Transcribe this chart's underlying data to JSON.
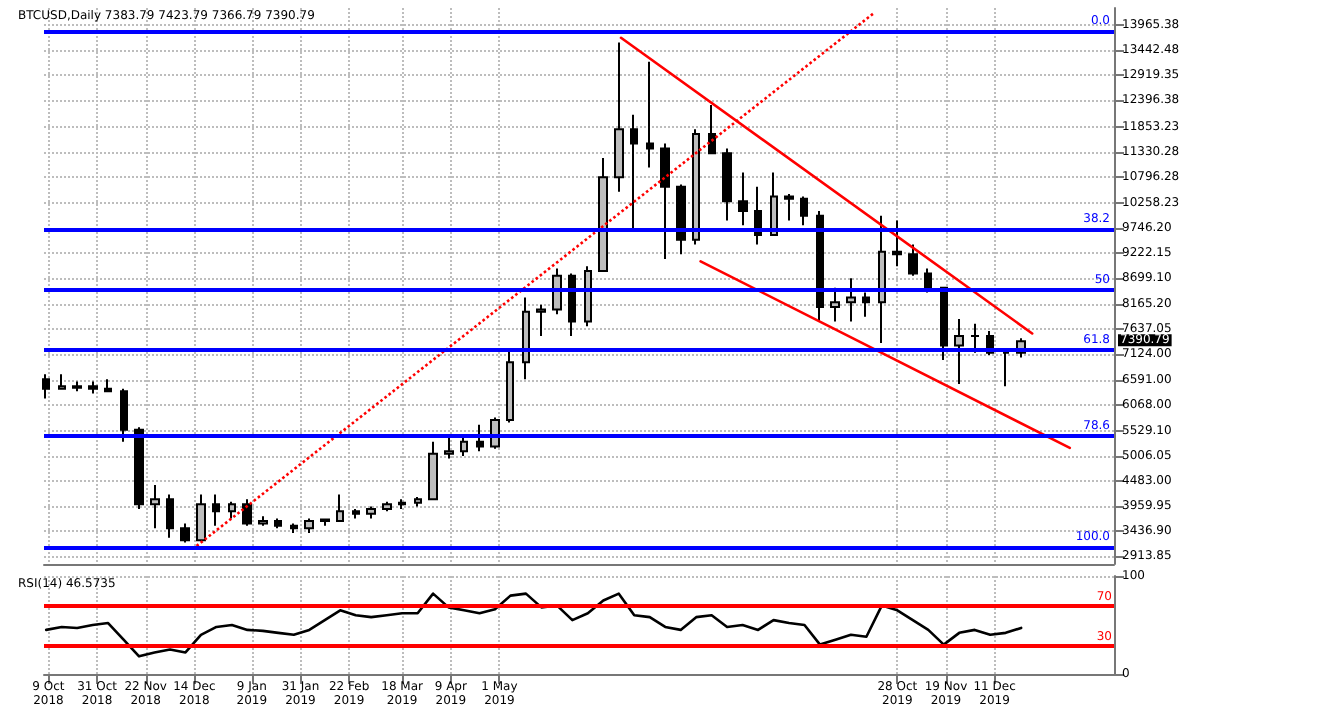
{
  "chart_data": [
    {
      "type": "candlestick",
      "title": "BTCUSD,Daily 7383.79 7423.79 7366.79 7390.79",
      "xlim": [
        "2018-10-07",
        "2020-02-03"
      ],
      "ylim": [
        2755,
        14320
      ],
      "xticks": [
        "2018-10-09",
        "2018-10-31",
        "2018-11-22",
        "2018-12-14",
        "2019-01-09",
        "2019-01-31",
        "2019-02-22",
        "2019-03-18",
        "2019-04-09",
        "2019-05-01",
        "2019-10-28",
        "2019-11-19",
        "2019-12-11"
      ],
      "yticks": [
        {
          "value": 13965.38,
          "label": "13965.38"
        },
        {
          "value": 13442.48,
          "label": "13442.48"
        },
        {
          "value": 12919.35,
          "label": "12919.35"
        },
        {
          "value": 12396.38,
          "label": "12396.38"
        },
        {
          "value": 11853.23,
          "label": "11853.23"
        },
        {
          "value": 11330.28,
          "label": "11330.28"
        },
        {
          "value": 10796.28,
          "label": "10796.28"
        },
        {
          "value": 10258.23,
          "label": "10258.23"
        },
        {
          "value": 9746.2,
          "label": "9746.20"
        },
        {
          "value": 9222.15,
          "label": "9222.15"
        },
        {
          "value": 8699.1,
          "label": "8699.10"
        },
        {
          "value": 8165.2,
          "label": "8165.20"
        },
        {
          "value": 7637.05,
          "label": "7637.05"
        },
        {
          "value": 7124,
          "label": "7124.00"
        },
        {
          "value": 6591,
          "label": "6591.00"
        },
        {
          "value": 6068,
          "label": "6068.00"
        },
        {
          "value": 5529.1,
          "label": "5529.10"
        },
        {
          "value": 5006.05,
          "label": "5006.05"
        },
        {
          "value": 4483,
          "label": "4483.00"
        },
        {
          "value": 3959.95,
          "label": "3959.95"
        },
        {
          "value": 3436.9,
          "label": "3436.90"
        },
        {
          "value": 2913.85,
          "label": "2913.85"
        }
      ],
      "tick_labels": "y",
      "grid": true,
      "series": [
        {
          "color": "#000000",
          "x": [
            "2018-10-08",
            "2018-10-15",
            "2018-10-22",
            "2018-10-29",
            "2018-11-05",
            "2018-11-12",
            "2018-11-19",
            "2018-11-26",
            "2018-12-03",
            "2018-12-10",
            "2018-12-17",
            "2018-12-24",
            "2018-12-31",
            "2019-01-07",
            "2019-01-14",
            "2019-01-21",
            "2019-01-28",
            "2019-02-04",
            "2019-02-11",
            "2019-02-18",
            "2019-02-25",
            "2019-03-04",
            "2019-03-11",
            "2019-03-18",
            "2019-03-25",
            "2019-04-01",
            "2019-04-08",
            "2019-04-15",
            "2019-04-22",
            "2019-04-29",
            "2019-05-06",
            "2019-05-13",
            "2019-05-20",
            "2019-05-27",
            "2019-06-03",
            "2019-06-10",
            "2019-06-17",
            "2019-06-24",
            "2019-07-01",
            "2019-07-08",
            "2019-07-15",
            "2019-07-22",
            "2019-07-29",
            "2019-08-05",
            "2019-08-12",
            "2019-08-19",
            "2019-08-26",
            "2019-09-02",
            "2019-09-09",
            "2019-09-16",
            "2019-09-23",
            "2019-09-30",
            "2019-10-07",
            "2019-10-14",
            "2019-10-21",
            "2019-10-28",
            "2019-11-04",
            "2019-11-11",
            "2019-11-18",
            "2019-11-25",
            "2019-12-02",
            "2019-12-09",
            "2019-12-16",
            "2019-12-23"
          ],
          "ohlc": [
            [
              6600,
              6700,
              6200,
              6400
            ],
            [
              6400,
              6700,
              6400,
              6450
            ],
            [
              6450,
              6550,
              6350,
              6420
            ],
            [
              6450,
              6550,
              6300,
              6400
            ],
            [
              6400,
              6600,
              6350,
              6350
            ],
            [
              6350,
              6400,
              5300,
              5550
            ],
            [
              5550,
              5600,
              3900,
              4000
            ],
            [
              4000,
              4400,
              3500,
              4100
            ],
            [
              4100,
              4200,
              3300,
              3500
            ],
            [
              3500,
              3600,
              3200,
              3250
            ],
            [
              3250,
              4200,
              3250,
              4000
            ],
            [
              4000,
              4200,
              3550,
              3850
            ],
            [
              3850,
              4050,
              3700,
              4000
            ],
            [
              4000,
              4100,
              3550,
              3600
            ],
            [
              3600,
              3750,
              3550,
              3650
            ],
            [
              3650,
              3700,
              3500,
              3550
            ],
            [
              3550,
              3600,
              3400,
              3500
            ],
            [
              3500,
              3700,
              3400,
              3650
            ],
            [
              3650,
              3700,
              3550,
              3680
            ],
            [
              3650,
              4200,
              3650,
              3850
            ],
            [
              3850,
              3900,
              3700,
              3800
            ],
            [
              3800,
              3950,
              3700,
              3900
            ],
            [
              3900,
              4050,
              3850,
              4000
            ],
            [
              4000,
              4100,
              3900,
              4030
            ],
            [
              4030,
              4150,
              3950,
              4100
            ],
            [
              4100,
              5300,
              4100,
              5050
            ],
            [
              5050,
              5450,
              4950,
              5100
            ],
            [
              5100,
              5400,
              5000,
              5300
            ],
            [
              5300,
              5650,
              5100,
              5200
            ],
            [
              5200,
              5800,
              5150,
              5750
            ],
            [
              5750,
              7200,
              5700,
              6950
            ],
            [
              6950,
              8300,
              6600,
              8000
            ],
            [
              8000,
              8150,
              7500,
              8050
            ],
            [
              8050,
              8900,
              7950,
              8750
            ],
            [
              8750,
              8800,
              7500,
              7800
            ],
            [
              7800,
              8950,
              7700,
              8850
            ],
            [
              8850,
              11200,
              8850,
              10800
            ],
            [
              10800,
              13600,
              10500,
              11800
            ],
            [
              11800,
              12100,
              9700,
              11500
            ],
            [
              11500,
              13200,
              11000,
              11400
            ],
            [
              11400,
              11500,
              9100,
              10600
            ],
            [
              10600,
              10650,
              9200,
              9500
            ],
            [
              9500,
              11800,
              9400,
              11700
            ],
            [
              11700,
              12300,
              11300,
              11300
            ],
            [
              11300,
              11400,
              9900,
              10300
            ],
            [
              10300,
              10900,
              9800,
              10100
            ],
            [
              10100,
              10600,
              9400,
              9600
            ],
            [
              9600,
              10900,
              9600,
              10400
            ],
            [
              10400,
              10450,
              9900,
              10350
            ],
            [
              10350,
              10400,
              9800,
              10000
            ],
            [
              10000,
              10100,
              7800,
              8100
            ],
            [
              8100,
              8500,
              7800,
              8200
            ],
            [
              8200,
              8700,
              7800,
              8300
            ],
            [
              8300,
              8400,
              7900,
              8200
            ],
            [
              8200,
              10000,
              7350,
              9250
            ],
            [
              9250,
              9900,
              8950,
              9200
            ],
            [
              9200,
              9400,
              8750,
              8800
            ],
            [
              8800,
              8900,
              8400,
              8500
            ],
            [
              8500,
              8500,
              7000,
              7300
            ],
            [
              7300,
              7850,
              6500,
              7500
            ],
            [
              7500,
              7750,
              7150,
              7500
            ],
            [
              7500,
              7600,
              7100,
              7150
            ],
            [
              7150,
              7200,
              6450,
              7150
            ],
            [
              7150,
              7450,
              7050,
              7390.79
            ]
          ]
        },
        {
          "type": "line",
          "color": "#ff0000",
          "x": [
            "2019-06-25",
            "2019-12-28"
          ],
          "values": [
            13700,
            7550
          ]
        },
        {
          "type": "line",
          "color": "#ff0000",
          "x": [
            "2019-07-31",
            "2020-01-14"
          ],
          "values": [
            9050,
            5170
          ]
        },
        {
          "type": "line",
          "color": "#ff0000",
          "line_style": "dotted",
          "x": [
            "2018-12-15",
            "2019-10-17"
          ],
          "values": [
            3130,
            14200
          ]
        }
      ],
      "ref_lines": [
        {
          "axis": "y",
          "value": 13850,
          "color": "#0000ff"
        },
        {
          "axis": "y",
          "value": 9730,
          "color": "#0000ff"
        },
        {
          "axis": "y",
          "value": 8460,
          "color": "#0000ff"
        },
        {
          "axis": "y",
          "value": 7200,
          "color": "#0000ff"
        },
        {
          "axis": "y",
          "value": 5410,
          "color": "#0000ff"
        },
        {
          "axis": "y",
          "value": 3100,
          "color": "#0000ff"
        }
      ],
      "annotations": [
        {
          "text": "0.0",
          "y": 13850
        },
        {
          "text": "38.2",
          "y": 9730
        },
        {
          "text": "50",
          "y": 8460
        },
        {
          "text": "61.8",
          "y": 7200
        },
        {
          "text": "78.6",
          "y": 5410
        },
        {
          "text": "100.0",
          "y": 3100
        },
        "7390.79"
      ]
    },
    {
      "type": "line",
      "title": "RSI(14) 46.5735",
      "xlim": [
        "2018-10-07",
        "2020-02-03"
      ],
      "ylim": [
        0,
        100
      ],
      "yticks": [
        0,
        100
      ],
      "xticks": [
        {
          "value": "2018-10-09",
          "label": "9 Oct 2018"
        },
        {
          "value": "2018-10-31",
          "label": "31 Oct 2018"
        },
        {
          "value": "2018-11-22",
          "label": "22 Nov 2018"
        },
        {
          "value": "2018-12-14",
          "label": "14 Dec 2018"
        },
        {
          "value": "2019-01-09",
          "label": "9 Jan 2019"
        },
        {
          "value": "2019-01-31",
          "label": "31 Jan 2019"
        },
        {
          "value": "2019-02-22",
          "label": "22 Feb 2019"
        },
        {
          "value": "2019-03-18",
          "label": "18 Mar 2019"
        },
        {
          "value": "2019-04-09",
          "label": "9 Apr 2019"
        },
        {
          "value": "2019-05-01",
          "label": "1 May 2019"
        },
        {
          "value": "2019-10-28",
          "label": "28 Oct 2019"
        },
        {
          "value": "2019-11-19",
          "label": "19 Nov 2019"
        },
        {
          "value": "2019-12-11",
          "label": "11 Dec 2019"
        }
      ],
      "grid": true,
      "series": [
        {
          "color": "#000000",
          "x": [
            "2018-10-08",
            "2018-10-15",
            "2018-10-22",
            "2018-10-29",
            "2018-11-05",
            "2018-11-12",
            "2018-11-19",
            "2018-11-26",
            "2018-12-03",
            "2018-12-10",
            "2018-12-17",
            "2018-12-24",
            "2018-12-31",
            "2019-01-07",
            "2019-01-14",
            "2019-01-21",
            "2019-01-28",
            "2019-02-04",
            "2019-02-11",
            "2019-02-18",
            "2019-02-25",
            "2019-03-04",
            "2019-03-11",
            "2019-03-18",
            "2019-03-25",
            "2019-04-01",
            "2019-04-08",
            "2019-04-15",
            "2019-04-22",
            "2019-04-29",
            "2019-05-06",
            "2019-05-13",
            "2019-05-20",
            "2019-05-27",
            "2019-06-03",
            "2019-06-10",
            "2019-06-17",
            "2019-06-24",
            "2019-07-01",
            "2019-07-08",
            "2019-07-15",
            "2019-07-22",
            "2019-07-29",
            "2019-08-05",
            "2019-08-12",
            "2019-08-19",
            "2019-08-26",
            "2019-09-02",
            "2019-09-09",
            "2019-09-16",
            "2019-09-23",
            "2019-09-30",
            "2019-10-07",
            "2019-10-14",
            "2019-10-21",
            "2019-10-28",
            "2019-11-04",
            "2019-11-11",
            "2019-11-18",
            "2019-11-25",
            "2019-12-02",
            "2019-12-09",
            "2019-12-16",
            "2019-12-23"
          ],
          "values": [
            45,
            48,
            47,
            50,
            52,
            35,
            18,
            22,
            25,
            22,
            40,
            48,
            50,
            45,
            44,
            42,
            40,
            45,
            55,
            65,
            60,
            58,
            60,
            62,
            62,
            82,
            68,
            65,
            62,
            66,
            80,
            82,
            68,
            70,
            55,
            62,
            75,
            82,
            60,
            58,
            48,
            45,
            58,
            60,
            48,
            50,
            45,
            55,
            52,
            50,
            30,
            35,
            40,
            38,
            70,
            65,
            55,
            45,
            30,
            42,
            45,
            40,
            42,
            47
          ]
        }
      ],
      "ref_lines": [
        {
          "axis": "y",
          "value": 70,
          "label": "70",
          "color": "#ff0000"
        },
        {
          "axis": "y",
          "value": 30,
          "label": "30",
          "color": "#ff0000"
        }
      ]
    }
  ]
}
